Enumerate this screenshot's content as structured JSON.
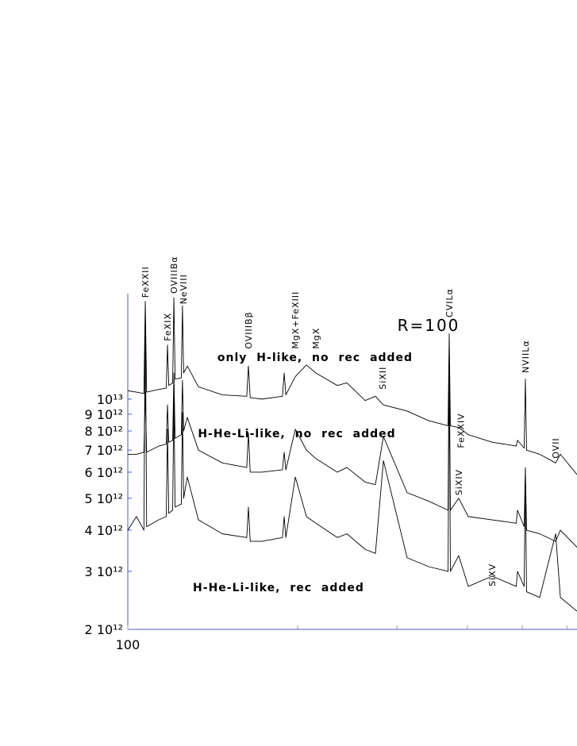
{
  "chart_data": {
    "type": "line",
    "annotation": "R=100",
    "xscale": "log",
    "yscale": "log",
    "axis_color": "#4b5bd1",
    "xlim": [
      100,
      625.3
    ],
    "xticks": [
      100,
      {
        "value": 200,
        "label": null
      },
      {
        "value": 300,
        "label": null
      },
      {
        "value": 400,
        "label": null
      },
      {
        "value": 500,
        "label": null
      },
      {
        "value": 600,
        "label": null
      }
    ],
    "ylim": [
      2000000000000.0,
      20900000000000.0
    ],
    "yticks": [
      {
        "value": 2000000000000.0,
        "label": "2 10¹²"
      },
      {
        "value": 3000000000000.0,
        "label": "3 10¹²"
      },
      {
        "value": 4000000000000.0,
        "label": "4 10¹²"
      },
      {
        "value": 5000000000000.0,
        "label": "5 10¹²"
      },
      {
        "value": 6000000000000.0,
        "label": "6 10¹²"
      },
      {
        "value": 7000000000000.0,
        "label": "7 10¹²"
      },
      {
        "value": 8000000000000.0,
        "label": "8 10¹²"
      },
      {
        "value": 9000000000000.0,
        "label": "9 10¹²"
      },
      {
        "value": 10000000000000.0,
        "label": "10¹³"
      }
    ],
    "x": [
      100,
      103.6,
      106.8,
      107.4,
      108.0,
      113.5,
      117.0,
      117.6,
      118.2,
      120.1,
      120.7,
      121.3,
      124.4,
      125.0,
      125.6,
      127.5,
      133.4,
      147.1,
      162.5,
      163.6,
      164.8,
      172.9,
      188.0,
      189.3,
      190.6,
      198.1,
      207.3,
      215.4,
      235.1,
      244.5,
      263.4,
      274.7,
      283.8,
      312.6,
      341.3,
      369.5,
      371.2,
      373.0,
      385.9,
      401.2,
      442.2,
      488.0,
      490.5,
      504.0,
      506.5,
      509.0,
      537.0,
      573.1,
      584.3,
      625.3
    ],
    "series": [
      {
        "name": "only H-like, no rec added",
        "color": "#000000",
        "values": [
          10600000000000.0,
          10500000000000.0,
          10400000000000.0,
          19800000000000.0,
          10500000000000.0,
          10700000000000.0,
          10800000000000.0,
          14600000000000.0,
          11000000000000.0,
          11200000000000.0,
          20300000000000.0,
          11500000000000.0,
          11600000000000.0,
          19200000000000.0,
          12000000000000.0,
          12600000000000.0,
          10900000000000.0,
          10300000000000.0,
          10200000000000.0,
          12600000000000.0,
          10100000000000.0,
          10000000000000.0,
          10200000000000.0,
          12000000000000.0,
          10300000000000.0,
          11700000000000.0,
          12700000000000.0,
          12000000000000.0,
          11000000000000.0,
          11200000000000.0,
          9900000000000.0,
          10200000000000.0,
          9600000000000.0,
          9200000000000.0,
          8600000000000.0,
          8300000000000.0,
          15800000000000.0,
          8300000000000.0,
          8200000000000.0,
          7800000000000.0,
          7400000000000.0,
          7200000000000.0,
          7500000000000.0,
          7100000000000.0,
          11500000000000.0,
          7000000000000.0,
          6800000000000.0,
          6400000000000.0,
          6800000000000.0,
          5900000000000.0
        ]
      },
      {
        "name": "H-He-Li-like, no rec added",
        "color": "#000000",
        "values": [
          6800000000000.0,
          6800000000000.0,
          6900000000000.0,
          10500000000000.0,
          6900000000000.0,
          7200000000000.0,
          7300000000000.0,
          9600000000000.0,
          7400000000000.0,
          7500000000000.0,
          12000000000000.0,
          7600000000000.0,
          7800000000000.0,
          11400000000000.0,
          8000000000000.0,
          8800000000000.0,
          7000000000000.0,
          6400000000000.0,
          6200000000000.0,
          7900000000000.0,
          6000000000000.0,
          6000000000000.0,
          6100000000000.0,
          6900000000000.0,
          6100000000000.0,
          8100000000000.0,
          7000000000000.0,
          6600000000000.0,
          6000000000000.0,
          6200000000000.0,
          5600000000000.0,
          5500000000000.0,
          7700000000000.0,
          5200000000000.0,
          4900000000000.0,
          4600000000000.0,
          13800000000000.0,
          4600000000000.0,
          5000000000000.0,
          4400000000000.0,
          4300000000000.0,
          4200000000000.0,
          4600000000000.0,
          4100000000000.0,
          6200000000000.0,
          4000000000000.0,
          3900000000000.0,
          3700000000000.0,
          4000000000000.0,
          3550000000000.0
        ]
      },
      {
        "name": "H-He-Li-like, rec added",
        "color": "#000000",
        "values": [
          4000000000000.0,
          4400000000000.0,
          4000000000000.0,
          19000000000000.0,
          4100000000000.0,
          4300000000000.0,
          4400000000000.0,
          8100000000000.0,
          4500000000000.0,
          4600000000000.0,
          10200000000000.0,
          4700000000000.0,
          4800000000000.0,
          9100000000000.0,
          5000000000000.0,
          5800000000000.0,
          4300000000000.0,
          3900000000000.0,
          3800000000000.0,
          4700000000000.0,
          3700000000000.0,
          3700000000000.0,
          3800000000000.0,
          4400000000000.0,
          3800000000000.0,
          5800000000000.0,
          4400000000000.0,
          4200000000000.0,
          3800000000000.0,
          3900000000000.0,
          3500000000000.0,
          3400000000000.0,
          6500000000000.0,
          3300000000000.0,
          3100000000000.0,
          3000000000000.0,
          14200000000000.0,
          3000000000000.0,
          3350000000000.0,
          2700000000000.0,
          2900000000000.0,
          2700000000000.0,
          3000000000000.0,
          2700000000000.0,
          5800000000000.0,
          2600000000000.0,
          2500000000000.0,
          3900000000000.0,
          2500000000000.0,
          2270000000000.0
        ]
      }
    ],
    "line_labels": [
      {
        "text": "FeXXII",
        "x": 107.4,
        "y": 20300000000000.0
      },
      {
        "text": "FeXIX",
        "x": 117.6,
        "y": 15000000000000.0
      },
      {
        "text": "OVIIIBα",
        "x": 120.7,
        "y": 20900000000000.0
      },
      {
        "text": "NeVIII",
        "x": 125.5,
        "y": 19400000000000.0
      },
      {
        "text": "OVIIIBβ",
        "x": 163.6,
        "y": 14200000000000.0
      },
      {
        "text": "MgX+FeXIII",
        "x": 198.1,
        "y": 14200000000000.0
      },
      {
        "text": "MgX",
        "x": 215.4,
        "y": 14200000000000.0
      },
      {
        "text": "SiXII",
        "x": 283.0,
        "y": 10700000000000.0
      },
      {
        "text": "CVILα",
        "x": 371.2,
        "y": 17700000000000.0
      },
      {
        "text": "FeXXIV",
        "x": 389.0,
        "y": 7100000000000.0
      },
      {
        "text": "SiXIV",
        "x": 385.9,
        "y": 5100000000000.0
      },
      {
        "text": "SiXV",
        "x": 442.0,
        "y": 2700000000000.0
      },
      {
        "text": "NVIILα",
        "x": 506.5,
        "y": 12000000000000.0
      },
      {
        "text": "OVII",
        "x": 573.0,
        "y": 6600000000000.0
      }
    ]
  }
}
